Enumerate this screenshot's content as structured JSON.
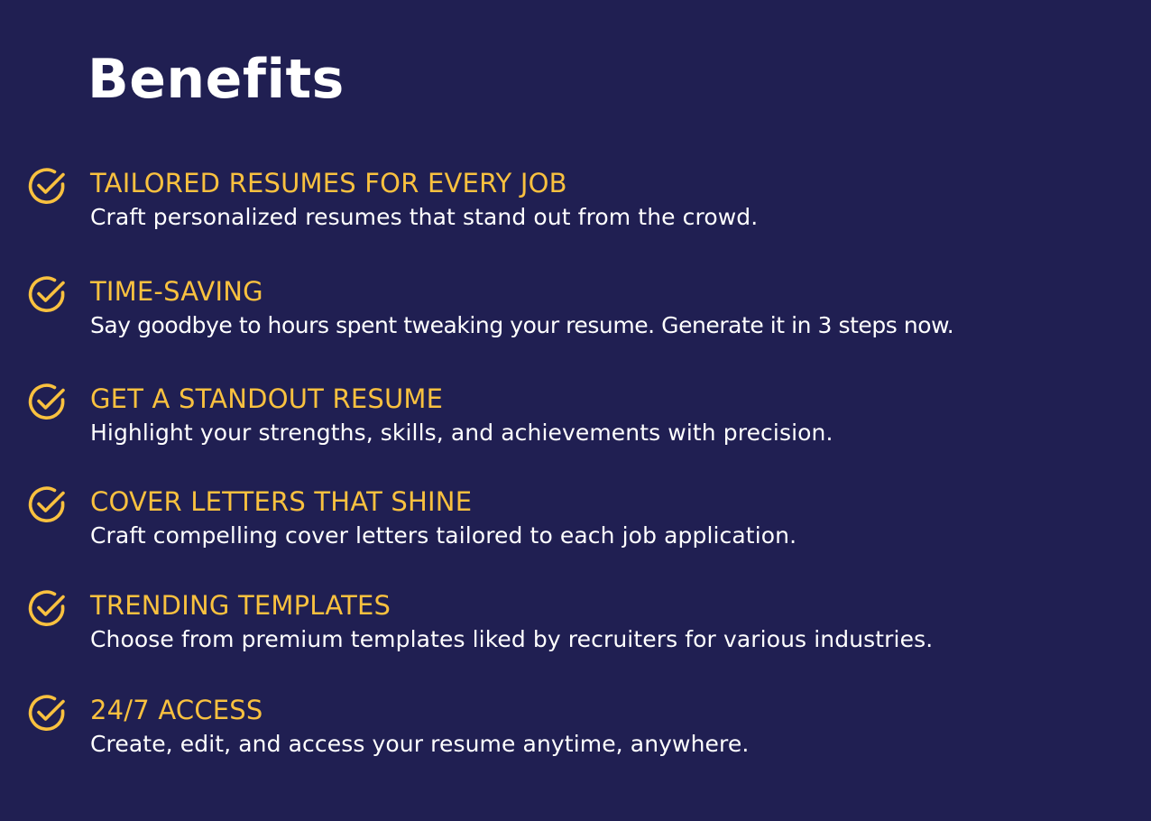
{
  "page": {
    "title": "Benefits"
  },
  "colors": {
    "background": "#201f52",
    "accent": "#f9c13f",
    "text": "#ffffff"
  },
  "benefits": [
    {
      "icon": "check-circle-icon",
      "heading": "TAILORED RESUMES FOR EVERY JOB",
      "description": "Craft personalized resumes that stand out from the crowd."
    },
    {
      "icon": "check-circle-icon",
      "heading": "TIME-SAVING",
      "description": "Say goodbye to hours spent tweaking your resume. Generate it in 3 steps now."
    },
    {
      "icon": "check-circle-icon",
      "heading": "GET A STANDOUT RESUME",
      "description": "Highlight your strengths, skills, and achievements with precision."
    },
    {
      "icon": "check-circle-icon",
      "heading": "COVER LETTERS THAT SHINE",
      "description": "Craft compelling cover letters tailored to each job application."
    },
    {
      "icon": "check-circle-icon",
      "heading": "TRENDING TEMPLATES",
      "description": "Choose from premium templates liked by recruiters for various industries."
    },
    {
      "icon": "check-circle-icon",
      "heading": "24/7 ACCESS",
      "description": "Create, edit, and access your resume anytime, anywhere."
    }
  ]
}
